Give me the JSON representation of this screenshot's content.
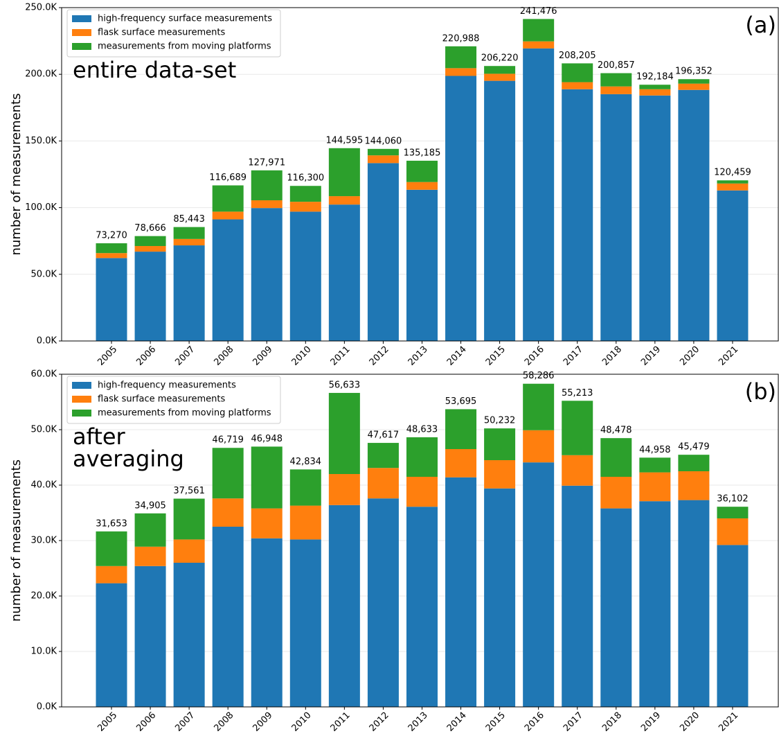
{
  "chart_data": [
    {
      "type": "bar",
      "stacked": true,
      "ylabel": "number of measurements",
      "annotation": "(a)",
      "subtitle_lines": [
        "entire data-set"
      ],
      "grid": true,
      "legend": "upper left",
      "categories": [
        "2005",
        "2006",
        "2007",
        "2008",
        "2009",
        "2010",
        "2011",
        "2012",
        "2013",
        "2014",
        "2015",
        "2016",
        "2017",
        "2018",
        "2019",
        "2020",
        "2021"
      ],
      "series": [
        {
          "name": "high-frequency surface measurements",
          "color": "#1f77b4",
          "values": [
            62200,
            67000,
            71700,
            91200,
            99700,
            97000,
            102300,
            133400,
            113400,
            198800,
            195100,
            219400,
            188800,
            185100,
            184100,
            188300,
            112900
          ]
        },
        {
          "name": "flask surface measurements",
          "color": "#ff7f0e",
          "values": [
            3700,
            4200,
            4800,
            5800,
            5800,
            7400,
            6300,
            5800,
            5800,
            5800,
            5300,
            5300,
            5300,
            5800,
            4700,
            4700,
            5200
          ]
        },
        {
          "name": "measurements from moving platforms",
          "color": "#2ca02c",
          "values": [
            7370,
            7466,
            8943,
            19689,
            22471,
            11900,
            35995,
            4860,
            15985,
            16388,
            5820,
            16776,
            14105,
            9957,
            3384,
            3352,
            2359
          ]
        }
      ],
      "totals": [
        73270,
        78666,
        85443,
        116689,
        127971,
        116300,
        144595,
        144060,
        135185,
        220988,
        206220,
        241476,
        208205,
        200857,
        192184,
        196352,
        120459
      ],
      "total_labels": [
        "73,270",
        "78,666",
        "85,443",
        "116,689",
        "127,971",
        "116,300",
        "144,595",
        "144,060",
        "135,185",
        "220,988",
        "206,220",
        "241,476",
        "208,205",
        "200,857",
        "192,184",
        "196,352",
        "120,459"
      ],
      "ylim": [
        0,
        250000
      ],
      "yticks": [
        {
          "value": 0,
          "label": "0.0K"
        },
        {
          "value": 50000,
          "label": "50.0K"
        },
        {
          "value": 100000,
          "label": "100.0K"
        },
        {
          "value": 150000,
          "label": "150.0K"
        },
        {
          "value": 200000,
          "label": "200.0K"
        },
        {
          "value": 250000,
          "label": "250.0K"
        }
      ]
    },
    {
      "type": "bar",
      "stacked": true,
      "ylabel": "number of measurements",
      "annotation": "(b)",
      "subtitle_lines": [
        "after",
        "averaging"
      ],
      "grid": true,
      "legend": "upper left",
      "categories": [
        "2005",
        "2006",
        "2007",
        "2008",
        "2009",
        "2010",
        "2011",
        "2012",
        "2013",
        "2014",
        "2015",
        "2016",
        "2017",
        "2018",
        "2019",
        "2020",
        "2021"
      ],
      "series": [
        {
          "name": "high-frequency measurements",
          "color": "#1f77b4",
          "values": [
            22300,
            25400,
            26000,
            32500,
            30400,
            30200,
            36400,
            37600,
            36100,
            41400,
            39400,
            44100,
            39900,
            35800,
            37100,
            37300,
            29200
          ]
        },
        {
          "name": "flask surface measurements",
          "color": "#ff7f0e",
          "values": [
            3100,
            3500,
            4200,
            5100,
            5400,
            6100,
            5600,
            5500,
            5400,
            5100,
            5100,
            5800,
            5500,
            5700,
            5200,
            5200,
            4800
          ]
        },
        {
          "name": "measurements from moving platforms",
          "color": "#2ca02c",
          "values": [
            6253,
            6005,
            7361,
            9119,
            11148,
            6534,
            14633,
            4517,
            7133,
            7195,
            5732,
            8386,
            9813,
            6978,
            2658,
            2979,
            2102
          ]
        }
      ],
      "totals": [
        31653,
        34905,
        37561,
        46719,
        46948,
        42834,
        56633,
        47617,
        48633,
        53695,
        50232,
        58286,
        55213,
        48478,
        44958,
        45479,
        36102
      ],
      "total_labels": [
        "31,653",
        "34,905",
        "37,561",
        "46,719",
        "46,948",
        "42,834",
        "56,633",
        "47,617",
        "48,633",
        "53,695",
        "50,232",
        "58,286",
        "55,213",
        "48,478",
        "44,958",
        "45,479",
        "36,102"
      ],
      "ylim": [
        0,
        60000
      ],
      "yticks": [
        {
          "value": 0,
          "label": "0.0K"
        },
        {
          "value": 10000,
          "label": "10.0K"
        },
        {
          "value": 20000,
          "label": "20.0K"
        },
        {
          "value": 30000,
          "label": "30.0K"
        },
        {
          "value": 40000,
          "label": "40.0K"
        },
        {
          "value": 50000,
          "label": "50.0K"
        },
        {
          "value": 60000,
          "label": "60.0K"
        }
      ]
    }
  ]
}
